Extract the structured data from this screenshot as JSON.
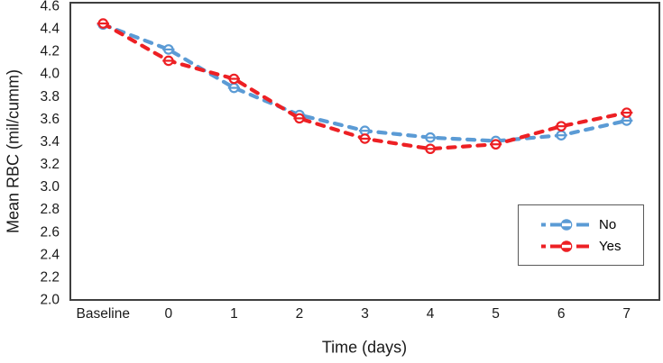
{
  "chart_data": {
    "type": "line",
    "title": "",
    "categories": [
      "Baseline",
      "0",
      "1",
      "2",
      "3",
      "4",
      "5",
      "6",
      "7"
    ],
    "series": [
      {
        "name": "No",
        "color": "#5b9bd5",
        "values": [
          4.43,
          4.21,
          3.87,
          3.63,
          3.49,
          3.43,
          3.4,
          3.45,
          3.58
        ]
      },
      {
        "name": "Yes",
        "color": "#ed2024",
        "values": [
          4.44,
          4.11,
          3.95,
          3.6,
          3.42,
          3.33,
          3.37,
          3.53,
          3.65
        ]
      }
    ],
    "xlabel": "Time (days)",
    "ylabel": "Mean RBC (mil/cumm)",
    "ylim": [
      2.0,
      4.6
    ],
    "ytick_step": 0.2,
    "ytick_labels": [
      "4.6",
      "4.4",
      "4.2",
      "4.0",
      "3.8",
      "3.6",
      "3.4",
      "3.2",
      "3.0",
      "2.8",
      "2.6",
      "2.4",
      "2.2",
      "2.0"
    ],
    "grid": false,
    "legend_position": "inside-right",
    "line_style": "dashed",
    "marker": "open-circle-with-dash",
    "axis_color": "#3f3f3f",
    "text_color": "#1a1a1a"
  },
  "legend": {
    "items": [
      {
        "label": "No",
        "color": "#5b9bd5"
      },
      {
        "label": "Yes",
        "color": "#ed2024"
      }
    ]
  }
}
